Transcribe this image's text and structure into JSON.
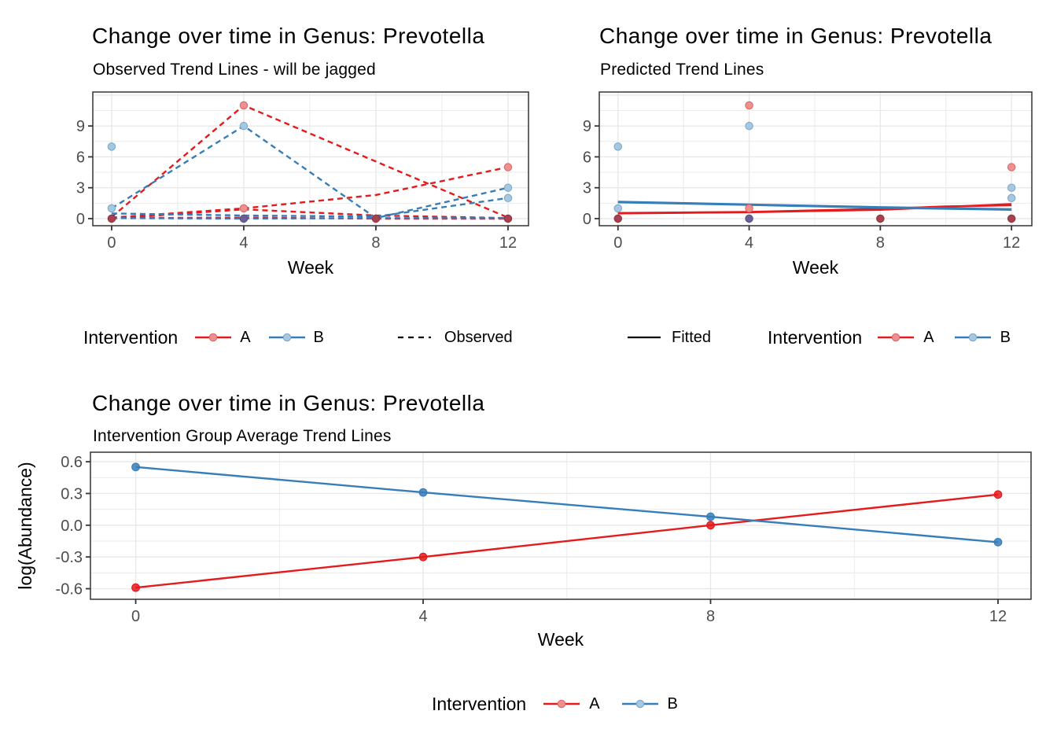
{
  "colors": {
    "series_a": "#E41A1C",
    "series_b": "#377EB8",
    "point_a_fill": "#EE8F90",
    "point_a_stroke": "#DA6A6C",
    "point_b_fill": "#A5C8E1",
    "point_b_stroke": "#7FA8CC",
    "point_dark_fill": "#A8414D",
    "point_dark_stroke": "#8E3340",
    "point_purple_fill": "#6C5E96",
    "point_purple_stroke": "#575081",
    "grid": "#E8E8E8",
    "panel_border": "#333333",
    "tick": "#333333",
    "tick_label": "#4D4D4D",
    "text": "#000000",
    "legend_black": "#000000"
  },
  "chart_data": [
    {
      "key": "observed",
      "type": "line",
      "title": "Change over time in Genus: Prevotella",
      "subtitle": "Observed Trend Lines - will be jagged",
      "xlabel": "Week",
      "ylabel": "",
      "x_tick_values": [
        0,
        4,
        8,
        12
      ],
      "x_tick_labels": [
        "0",
        "4",
        "8",
        "12"
      ],
      "y_tick_values": [
        0,
        3,
        6,
        9
      ],
      "y_tick_labels": [
        "0",
        "3",
        "6",
        "9"
      ],
      "x_minor": [
        2,
        6,
        10
      ],
      "y_minor": [
        1.5,
        4.5,
        7.5,
        10.5
      ],
      "y_grid_extra": [
        12
      ],
      "xlim": [
        -0.57,
        12.62
      ],
      "ylim": [
        -0.69,
        12.3
      ],
      "line_style": "dashed",
      "lines": [
        {
          "series": "A",
          "points": [
            [
              0,
              0.15
            ],
            [
              4,
              11
            ],
            [
              12,
              0.1
            ]
          ]
        },
        {
          "series": "A",
          "points": [
            [
              0,
              0.1
            ],
            [
              4,
              1
            ],
            [
              8,
              2.3
            ],
            [
              12,
              5
            ]
          ]
        },
        {
          "series": "A",
          "points": [
            [
              0,
              0
            ],
            [
              4,
              0.9
            ],
            [
              8,
              0.3
            ],
            [
              12,
              0.05
            ]
          ]
        },
        {
          "series": "A",
          "points": [
            [
              0,
              0.05
            ],
            [
              4,
              0.1
            ],
            [
              8,
              0
            ],
            [
              12,
              0
            ]
          ]
        },
        {
          "series": "B",
          "points": [
            [
              0,
              1
            ],
            [
              4,
              9
            ],
            [
              8,
              0.05
            ],
            [
              12,
              3
            ]
          ]
        },
        {
          "series": "B",
          "points": [
            [
              0,
              0.5
            ],
            [
              4,
              0.3
            ],
            [
              8,
              0.2
            ],
            [
              12,
              2
            ]
          ]
        },
        {
          "series": "B",
          "points": [
            [
              0,
              0.05
            ],
            [
              4,
              0
            ],
            [
              8,
              0.05
            ],
            [
              12,
              0.05
            ]
          ]
        }
      ],
      "markers": [
        {
          "x": 0,
          "y": 7,
          "series": "B"
        },
        {
          "x": 0,
          "y": 1,
          "series": "B"
        },
        {
          "x": 0,
          "y": 0,
          "series": "dark"
        },
        {
          "x": 4,
          "y": 11,
          "series": "A"
        },
        {
          "x": 4,
          "y": 9,
          "series": "B"
        },
        {
          "x": 4,
          "y": 1,
          "series": "A"
        },
        {
          "x": 4,
          "y": 0,
          "series": "purple"
        },
        {
          "x": 8,
          "y": 0,
          "series": "dark"
        },
        {
          "x": 12,
          "y": 5,
          "series": "A"
        },
        {
          "x": 12,
          "y": 3,
          "series": "B"
        },
        {
          "x": 12,
          "y": 2,
          "series": "B"
        },
        {
          "x": 12,
          "y": 0,
          "series": "dark"
        }
      ]
    },
    {
      "key": "predicted",
      "type": "line",
      "title": "Change over time in Genus: Prevotella",
      "subtitle": "Predicted Trend Lines",
      "xlabel": "Week",
      "ylabel": "",
      "x_tick_values": [
        0,
        4,
        8,
        12
      ],
      "x_tick_labels": [
        "0",
        "4",
        "8",
        "12"
      ],
      "y_tick_values": [
        0,
        3,
        6,
        9
      ],
      "y_tick_labels": [
        "0",
        "3",
        "6",
        "9"
      ],
      "x_minor": [
        2,
        6,
        10
      ],
      "y_minor": [
        1.5,
        4.5,
        7.5,
        10.5
      ],
      "y_grid_extra": [
        12
      ],
      "xlim": [
        -0.57,
        12.62
      ],
      "ylim": [
        -0.69,
        12.3
      ],
      "line_style": "solid",
      "lines": [
        {
          "series": "A",
          "points": [
            [
              0,
              0.55
            ],
            [
              4,
              0.65
            ],
            [
              8,
              0.95
            ],
            [
              10,
              1.18
            ],
            [
              12,
              1.3
            ]
          ]
        },
        {
          "series": "A",
          "points": [
            [
              0,
              0.5
            ],
            [
              4,
              0.62
            ],
            [
              8,
              0.85
            ],
            [
              12,
              1.42
            ]
          ]
        },
        {
          "series": "B",
          "points": [
            [
              0,
              1.65
            ],
            [
              4,
              1.38
            ],
            [
              8,
              1.12
            ],
            [
              12,
              0.92
            ]
          ]
        },
        {
          "series": "B",
          "points": [
            [
              0,
              1.58
            ],
            [
              4,
              1.33
            ],
            [
              8,
              1.05
            ],
            [
              12,
              0.85
            ]
          ]
        }
      ],
      "markers": [
        {
          "x": 0,
          "y": 7,
          "series": "B"
        },
        {
          "x": 0,
          "y": 1,
          "series": "B"
        },
        {
          "x": 0,
          "y": 0,
          "series": "dark"
        },
        {
          "x": 4,
          "y": 11,
          "series": "A"
        },
        {
          "x": 4,
          "y": 9,
          "series": "B"
        },
        {
          "x": 4,
          "y": 1,
          "series": "A"
        },
        {
          "x": 4,
          "y": 0,
          "series": "purple"
        },
        {
          "x": 8,
          "y": 0,
          "series": "dark"
        },
        {
          "x": 12,
          "y": 5,
          "series": "A"
        },
        {
          "x": 12,
          "y": 3,
          "series": "B"
        },
        {
          "x": 12,
          "y": 2,
          "series": "B"
        },
        {
          "x": 12,
          "y": 0,
          "series": "dark"
        }
      ]
    },
    {
      "key": "average",
      "type": "line",
      "title": "Change over time in Genus: Prevotella",
      "subtitle": "Intervention Group Average Trend Lines",
      "xlabel": "Week",
      "ylabel": "log(Abundance)",
      "x": [
        0,
        4,
        8,
        12
      ],
      "series": [
        {
          "name": "A",
          "values": [
            -0.59,
            -0.3,
            0.0,
            0.29
          ]
        },
        {
          "name": "B",
          "values": [
            0.55,
            0.31,
            0.08,
            -0.16
          ]
        }
      ],
      "x_tick_values": [
        0,
        4,
        8,
        12
      ],
      "x_tick_labels": [
        "0",
        "4",
        "8",
        "12"
      ],
      "y_tick_values": [
        0.6,
        0.3,
        0.0,
        -0.3,
        -0.6
      ],
      "y_tick_labels": [
        "0.6",
        "0.3",
        "0.0",
        "-0.3",
        "-0.6"
      ],
      "x_minor": [
        2,
        6,
        10
      ],
      "y_minor": [
        0.45,
        0.15,
        -0.15,
        -0.45
      ],
      "y_grid_extra": [],
      "xlim": [
        -0.63,
        12.46
      ],
      "ylim": [
        -0.7,
        0.69
      ],
      "line_style": "solid"
    }
  ],
  "legends": {
    "observed": {
      "title": "Intervention",
      "items": [
        {
          "label": "A",
          "series": "A"
        },
        {
          "label": "B",
          "series": "B"
        }
      ],
      "linetype": {
        "label": "Observed",
        "style": "dashed"
      }
    },
    "predicted": {
      "linetype": {
        "label": "Fitted",
        "style": "solid"
      },
      "title": "Intervention",
      "items": [
        {
          "label": "A",
          "series": "A"
        },
        {
          "label": "B",
          "series": "B"
        }
      ]
    },
    "average": {
      "title": "Intervention",
      "items": [
        {
          "label": "A",
          "series": "A"
        },
        {
          "label": "B",
          "series": "B"
        }
      ]
    }
  }
}
